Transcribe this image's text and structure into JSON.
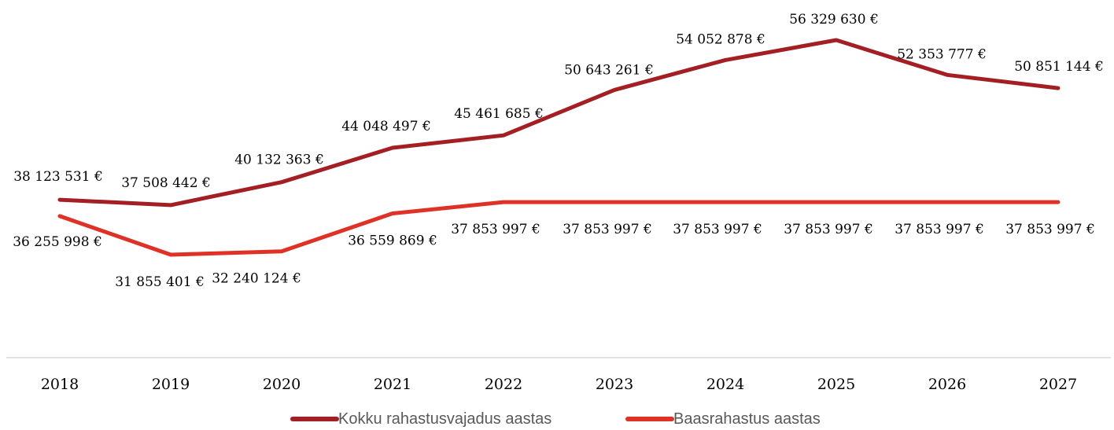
{
  "chart_data": {
    "type": "line",
    "title": "",
    "xlabel": "",
    "ylabel": "",
    "categories": [
      "2018",
      "2019",
      "2020",
      "2021",
      "2022",
      "2023",
      "2024",
      "2025",
      "2026",
      "2027"
    ],
    "ylim": [
      25000000,
      60000000
    ],
    "grid": false,
    "legend_position": "bottom",
    "series": [
      {
        "name": "Kokku rahastusvajadus aastas",
        "color": "#A31F24",
        "values": [
          38123531,
          37508442,
          40132363,
          44048497,
          45461685,
          50643261,
          54052878,
          56329630,
          52353777,
          50851144
        ],
        "labels": [
          "38 123 531 €",
          "37 508 442 €",
          "40 132 363 €",
          "44 048 497 €",
          "45 461 685 €",
          "50 643 261 €",
          "54 052 878 €",
          "56 329 630 €",
          "52 353 777 €",
          "50 851 144 €"
        ]
      },
      {
        "name": "Baasrahastus aastas",
        "color": "#E03127",
        "values": [
          36255998,
          31855401,
          32240124,
          36559869,
          37853997,
          37853997,
          37853997,
          37853997,
          37853997,
          37853997
        ],
        "labels": [
          "36 255 998 €",
          "31 855 401 €",
          "32 240 124 €",
          "36 559 869 €",
          "37 853 997 €",
          "37 853 997 €",
          "37 853 997 €",
          "37 853 997 €",
          "37 853 997 €",
          "37 853 997 €"
        ]
      }
    ]
  }
}
